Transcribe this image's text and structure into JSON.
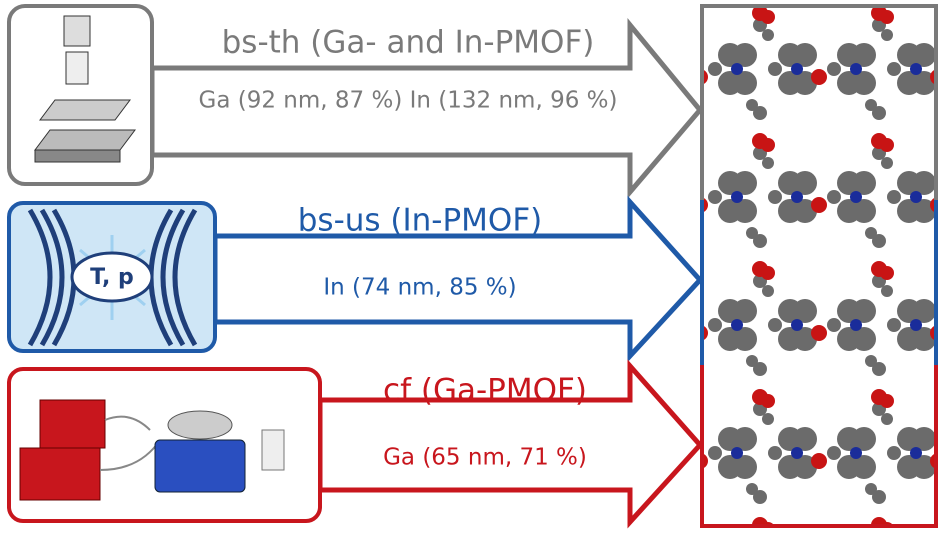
{
  "rows": [
    {
      "title": "bs-th (Ga- and In-PMOF)",
      "detail": "Ga (92 nm, 87 %) In (132 nm, 96 %)"
    },
    {
      "title": "bs-us (In-PMOF)",
      "detail": "In (74 nm, 85 %)"
    },
    {
      "title": "cf (Ga-PMOF)",
      "detail": "Ga (65 nm, 71 %)"
    }
  ],
  "icon_label": "T, p"
}
